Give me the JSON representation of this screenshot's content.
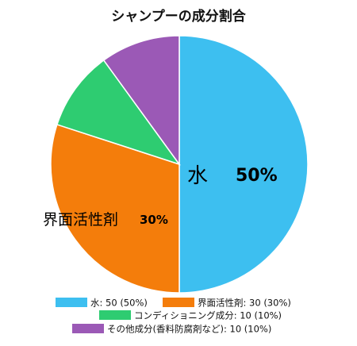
{
  "chart_data": {
    "type": "pie",
    "title": "シャンプーの成分割合",
    "slices": [
      {
        "name": "水",
        "value": 50,
        "percent": "50%",
        "color": "#3dbff0",
        "legend": "水: 50 (50%)"
      },
      {
        "name": "界面活性剤",
        "value": 30,
        "percent": "30%",
        "color": "#f47d0b",
        "legend": "界面活性剤: 30 (30%)"
      },
      {
        "name": "コンディショニング成分",
        "value": 10,
        "percent": "10%",
        "color": "#2ecc71",
        "legend": "コンディショニング成分: 10 (10%)"
      },
      {
        "name": "その他成分(香料防腐剤など)",
        "value": 10,
        "percent": "10%",
        "color": "#9b59b6",
        "legend": "その他成分(香料防腐剤など): 10 (10%)"
      }
    ],
    "data_labels": [
      {
        "slice": 0,
        "name": "水",
        "percent": "50%"
      },
      {
        "slice": 1,
        "name": "界面活性剤",
        "percent": "30%"
      }
    ],
    "legend_position": "bottom",
    "start_angle": "top",
    "direction": "clockwise"
  }
}
